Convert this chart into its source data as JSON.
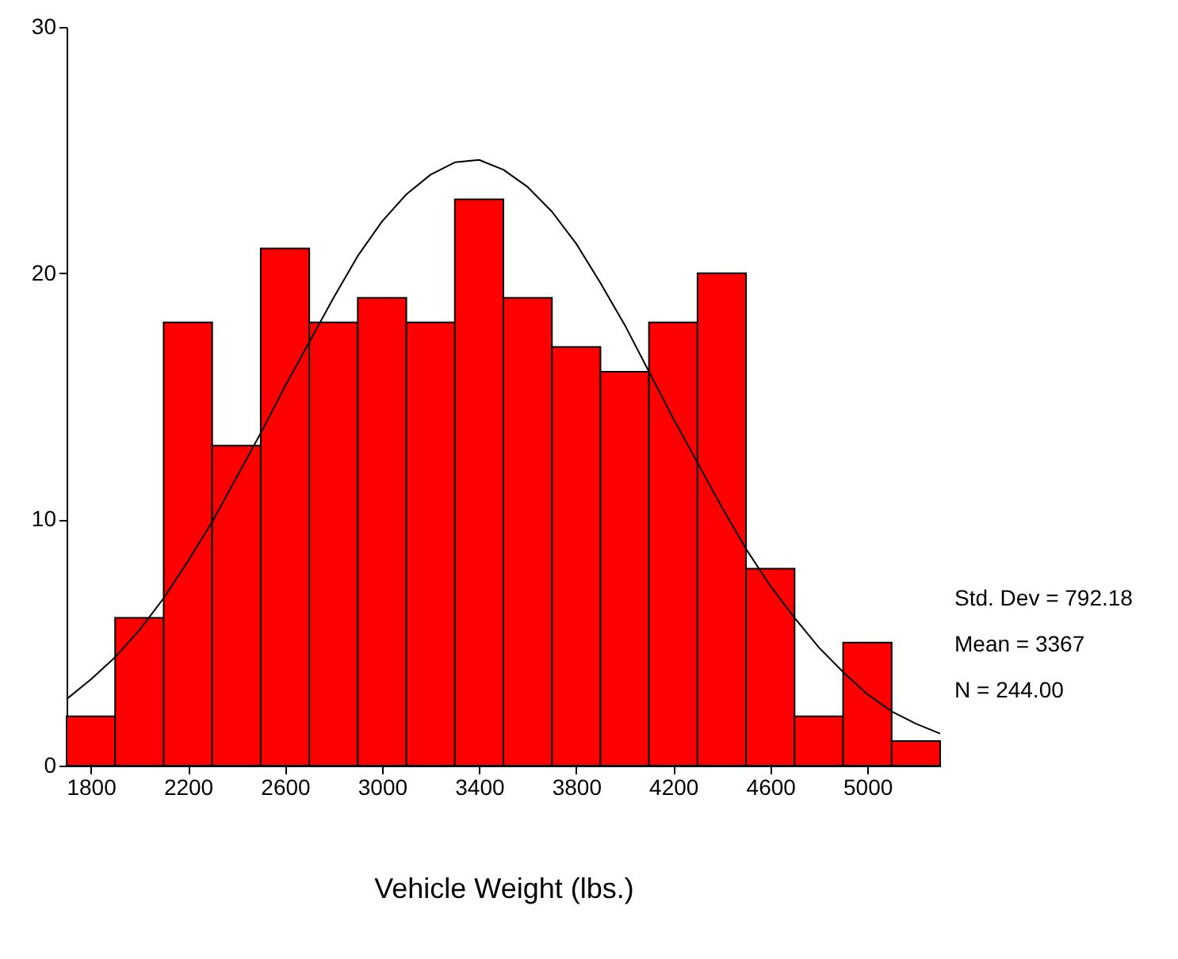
{
  "chart_data": {
    "type": "histogram",
    "xlabel": "Vehicle Weight (lbs.)",
    "bins": [
      1700,
      1900,
      2100,
      2300,
      2500,
      2700,
      2900,
      3100,
      3300,
      3500,
      3700,
      3900,
      4100,
      4300,
      4500,
      4700,
      4900,
      5100,
      5300
    ],
    "series": [
      {
        "color": "#ff0000",
        "values": [
          2,
          6,
          18,
          13,
          21,
          18,
          19,
          18,
          23,
          19,
          17,
          16,
          18,
          20,
          8,
          2,
          5,
          1
        ]
      },
      {
        "type": "line",
        "color": "#000000",
        "x": [
          1700,
          1800,
          1900,
          2000,
          2100,
          2200,
          2300,
          2400,
          2500,
          2600,
          2700,
          2800,
          2900,
          3000,
          3100,
          3200,
          3300,
          3400,
          3500,
          3600,
          3700,
          3800,
          3900,
          4000,
          4100,
          4200,
          4300,
          4400,
          4500,
          4600,
          4700,
          4800,
          4900,
          5000,
          5100,
          5200,
          5300
        ],
        "values": [
          2.7,
          3.5,
          4.4,
          5.5,
          6.8,
          8.3,
          9.9,
          11.7,
          13.5,
          15.4,
          17.2,
          19.0,
          20.7,
          22.1,
          23.2,
          24.0,
          24.5,
          24.6,
          24.2,
          23.5,
          22.5,
          21.2,
          19.6,
          17.9,
          16.0,
          14.1,
          12.3,
          10.5,
          8.8,
          7.3,
          6.0,
          4.8,
          3.8,
          2.9,
          2.2,
          1.7,
          1.3
        ]
      }
    ],
    "xlim": [
      1700,
      5300
    ],
    "xticks": [
      1800,
      2200,
      2600,
      3000,
      3400,
      3800,
      4200,
      4600,
      5000
    ],
    "ylim": [
      0,
      30
    ],
    "yticks": [
      0,
      10,
      20,
      30
    ],
    "annotations": [
      "Std. Dev = 792.18",
      "Mean = 3367",
      "N = 244.00"
    ]
  }
}
